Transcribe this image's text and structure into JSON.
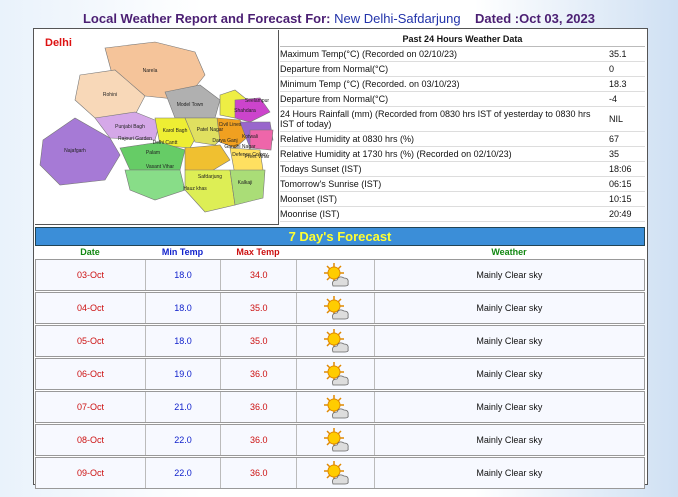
{
  "header": {
    "title": "Local Weather Report and Forecast For:",
    "station": "New Delhi-Safdarjung",
    "dated": "Dated :Oct 03, 2023"
  },
  "map": {
    "label": "Delhi",
    "districts": [
      "Narela",
      "Rohini",
      "Model Town",
      "Seelampur",
      "Shahdara",
      "Punjabi Bagh",
      "Karol Bagh",
      "Patel Nagar",
      "Civil Lines",
      "Kotwali",
      "Rajouri Garden",
      "Delhi Cantt",
      "Darya Ganj",
      "Gandhi Nagar",
      "Preet Vihar",
      "Najafgarh",
      "Palam",
      "Vasant Vihar",
      "Defence Colony",
      "Safdarjung",
      "Hauz khas",
      "Kalkaji"
    ]
  },
  "past24": {
    "title": "Past 24 Hours Weather Data",
    "rows": [
      [
        "Maximum Temp(°C) (Recorded on 02/10/23)",
        "35.1"
      ],
      [
        "Departure from Normal(°C)",
        "0"
      ],
      [
        "Minimum Temp (°C) (Recorded. on 03/10/23)",
        "18.3"
      ],
      [
        "Departure from Normal(°C)",
        "-4"
      ],
      [
        "24 Hours Rainfall (mm) (Recorded from 0830 hrs IST of yesterday to 0830 hrs IST of today)",
        "NIL"
      ],
      [
        "Relative Humidity at 0830 hrs (%)",
        "67"
      ],
      [
        "Relative Humidity at 1730 hrs (%) (Recorded on 02/10/23)",
        "35"
      ],
      [
        "Todays Sunset (IST)",
        "18:06"
      ],
      [
        "Tomorrow's Sunrise (IST)",
        "06:15"
      ],
      [
        "Moonset (IST)",
        "10:15"
      ],
      [
        "Moonrise (IST)",
        "20:49"
      ]
    ]
  },
  "forecast": {
    "title": "7 Day's Forecast",
    "columns": [
      "Date",
      "Min Temp",
      "Max Temp",
      "Weather"
    ],
    "rows": [
      [
        "03-Oct",
        "18.0",
        "34.0",
        "Mainly Clear sky"
      ],
      [
        "04-Oct",
        "18.0",
        "35.0",
        "Mainly Clear sky"
      ],
      [
        "05-Oct",
        "18.0",
        "35.0",
        "Mainly Clear sky"
      ],
      [
        "06-Oct",
        "19.0",
        "36.0",
        "Mainly Clear sky"
      ],
      [
        "07-Oct",
        "21.0",
        "36.0",
        "Mainly Clear sky"
      ],
      [
        "08-Oct",
        "22.0",
        "36.0",
        "Mainly Clear sky"
      ],
      [
        "09-Oct",
        "22.0",
        "36.0",
        "Mainly Clear sky"
      ]
    ]
  }
}
